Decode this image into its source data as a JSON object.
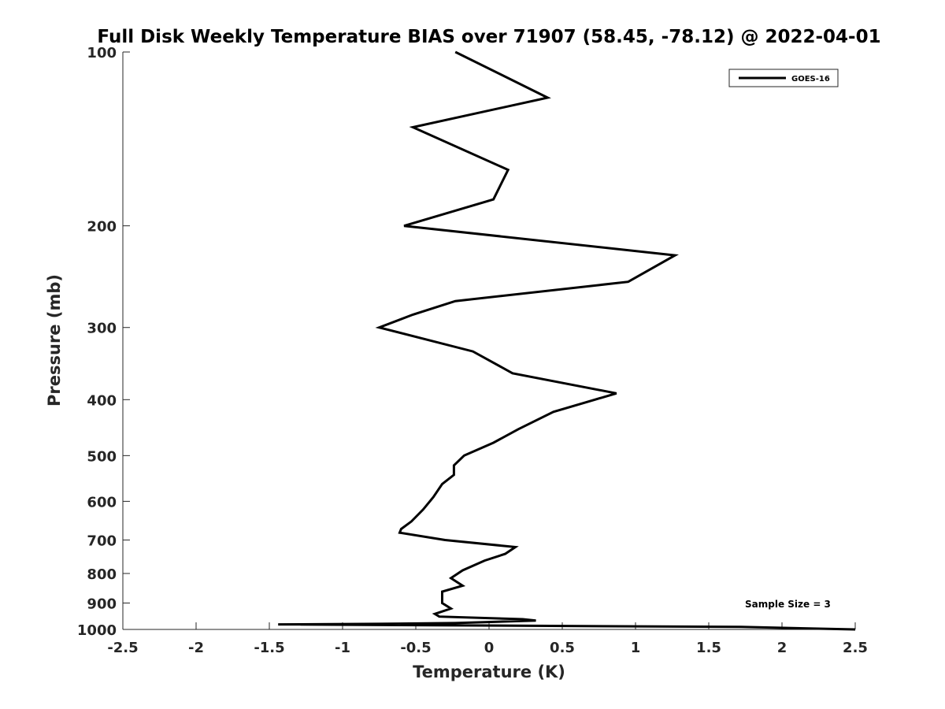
{
  "chart_data": {
    "type": "line",
    "title": "Full Disk Weekly Temperature BIAS over 71907 (58.45, -78.12) @ 2022-04-01",
    "xlabel": "Temperature (K)",
    "ylabel": "Pressure (mb)",
    "xlim": [
      -2.5,
      2.5
    ],
    "ylim": [
      100,
      1000
    ],
    "y_scale": "log",
    "y_reversed": true,
    "x_ticks": [
      "-2.5",
      "-2",
      "-1.5",
      "-1",
      "-0.5",
      "0",
      "0.5",
      "1",
      "1.5",
      "2",
      "2.5"
    ],
    "y_ticks": [
      "100",
      "200",
      "300",
      "400",
      "500",
      "600",
      "700",
      "800",
      "900",
      "1000"
    ],
    "grid": false,
    "legend_position": "top-right",
    "annotation": "Sample Size = 3",
    "series": [
      {
        "name": "GOES-16",
        "color": "#000000",
        "x": [
          -0.23,
          0.4,
          -0.52,
          0.13,
          0.03,
          -0.58,
          1.27,
          0.95,
          -0.23,
          -0.52,
          -0.75,
          -0.11,
          0.16,
          0.87,
          0.44,
          0.2,
          0.03,
          -0.17,
          -0.24,
          -0.24,
          -0.32,
          -0.38,
          -0.45,
          -0.53,
          -0.6,
          -0.61,
          -0.3,
          0.18,
          0.11,
          -0.03,
          -0.18,
          -0.26,
          -0.18,
          -0.32,
          -0.32,
          -0.32,
          -0.26,
          -0.37,
          -0.34,
          0.23,
          0.32,
          -0.23,
          -0.75,
          -1.44,
          1.72,
          2.5
        ],
        "y": [
          100,
          120,
          135,
          160,
          180,
          200,
          225,
          250,
          270,
          285,
          300,
          330,
          360,
          390,
          420,
          450,
          475,
          500,
          520,
          540,
          560,
          590,
          620,
          650,
          670,
          680,
          700,
          720,
          740,
          760,
          790,
          815,
          840,
          860,
          880,
          900,
          920,
          940,
          950,
          960,
          965,
          975,
          978,
          980,
          990,
          1000
        ]
      }
    ]
  }
}
